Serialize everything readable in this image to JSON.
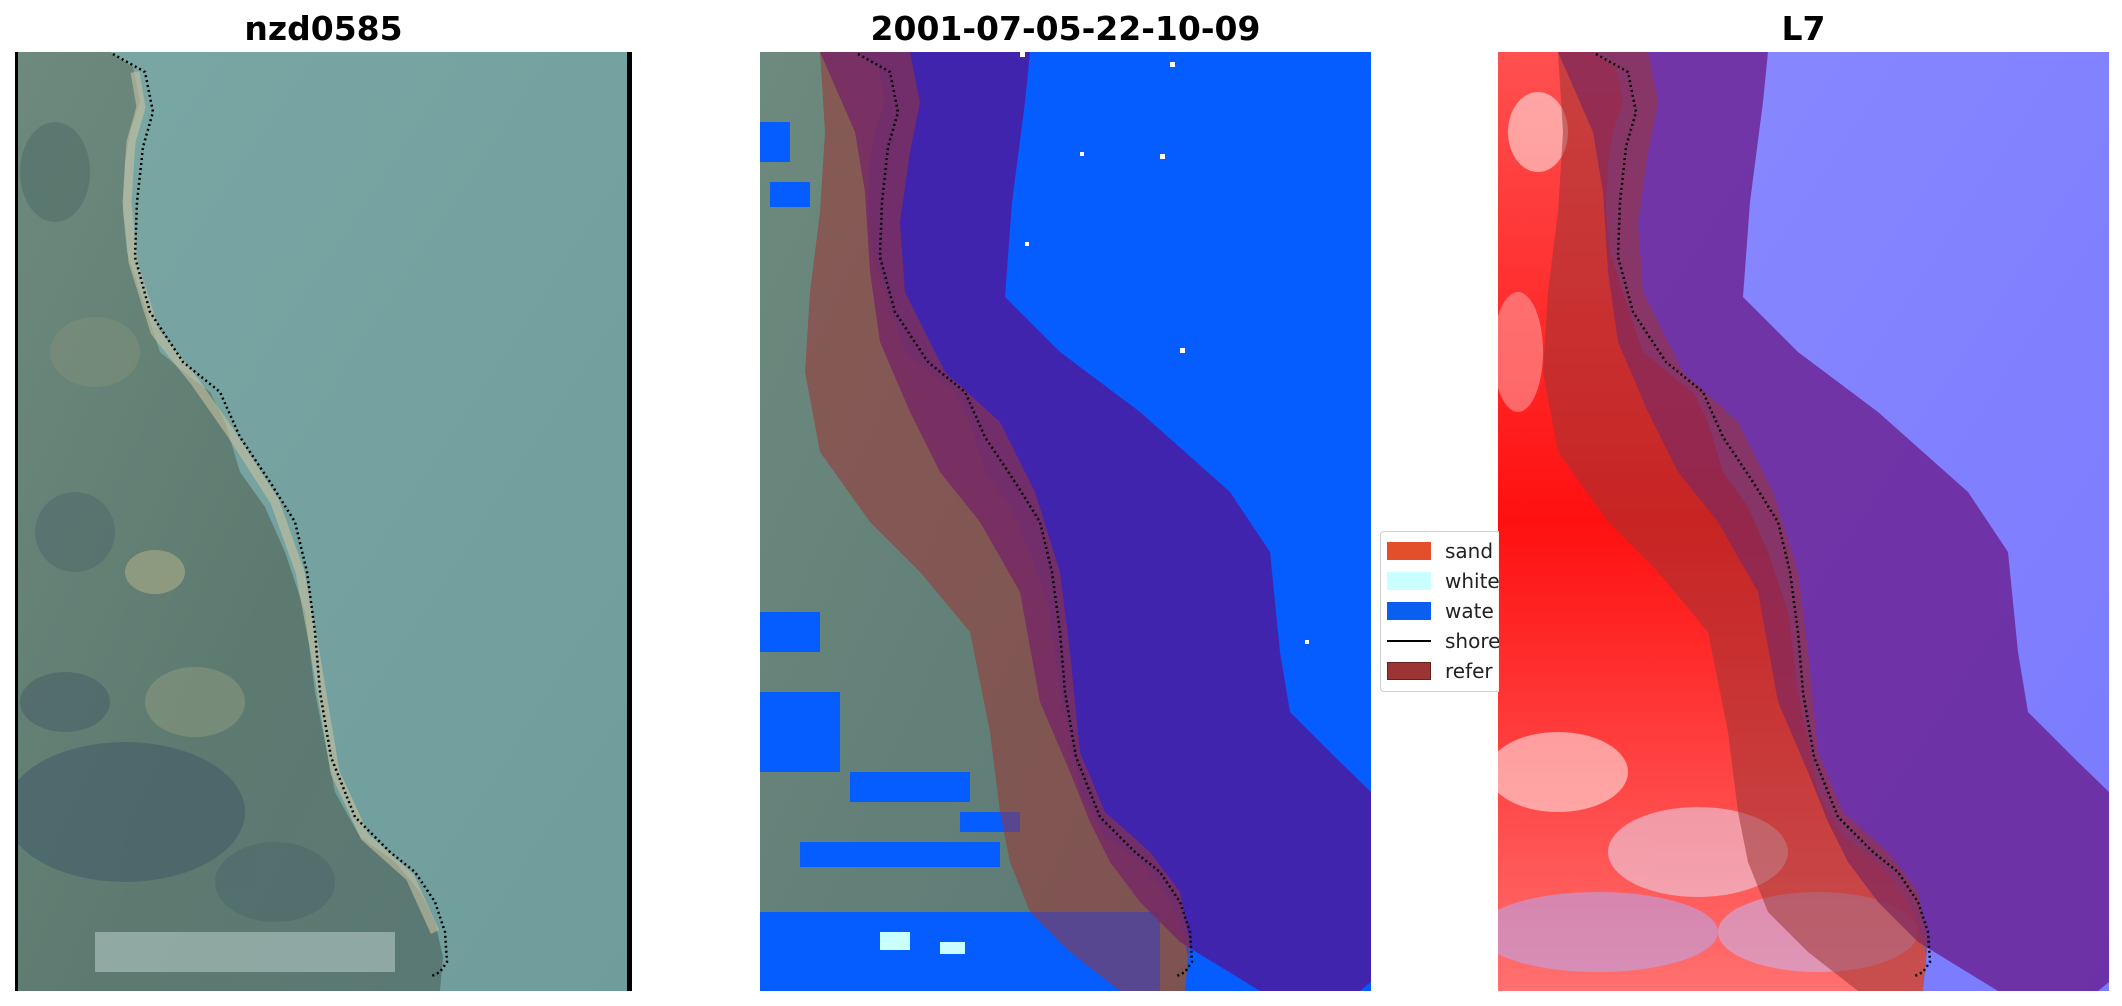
{
  "panels": [
    {
      "title": "nzd0585"
    },
    {
      "title": "2001-07-05-22-10-09"
    },
    {
      "title": "L7"
    }
  ],
  "legend": {
    "items": [
      {
        "label": "sand",
        "color": "#e24f2a",
        "kind": "patch"
      },
      {
        "label": "white",
        "color": "#c9ffff",
        "kind": "patch"
      },
      {
        "label": "wate",
        "color": "#0a5ef0",
        "kind": "patch"
      },
      {
        "label": "shore",
        "color": "#000000",
        "kind": "line"
      },
      {
        "label": "refer",
        "color": "#9b3535",
        "kind": "patch"
      }
    ]
  },
  "colors": {
    "water_class": "#055cff",
    "reference_buffer": "#9b3535",
    "land_index": "#ff0000",
    "water_index": "#7f7fff",
    "water_rgb": "#78a8a8"
  }
}
